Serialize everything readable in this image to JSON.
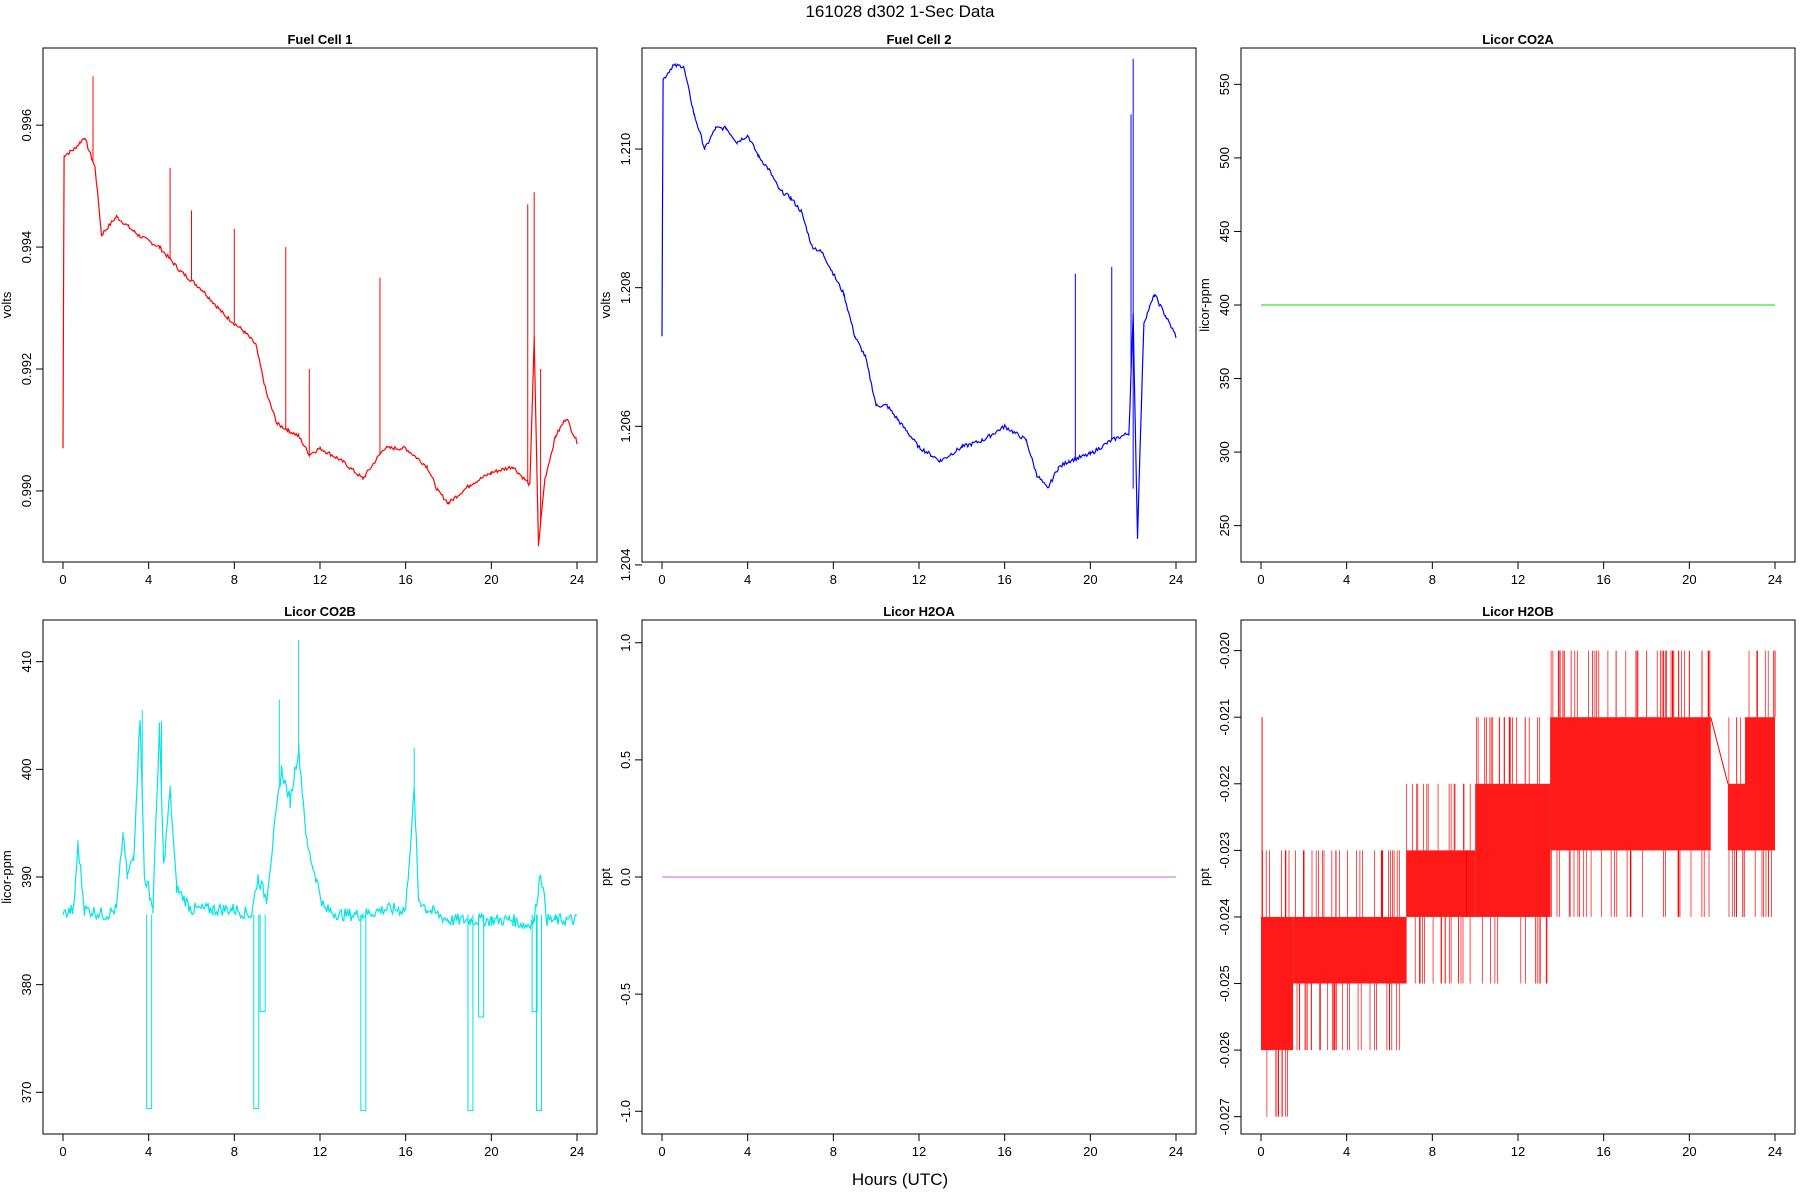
{
  "figure": {
    "title": "161028   d302   1-Sec Data",
    "xlabel": "Hours (UTC)"
  },
  "chart_data": [
    {
      "type": "line",
      "title": "Fuel Cell 1",
      "xlabel": "Hours (UTC)",
      "ylabel": "volts",
      "color": "#ff0000",
      "xlim": [
        0,
        24
      ],
      "ylim": [
        0.9889,
        0.9972
      ],
      "xticks": [
        0,
        4,
        8,
        12,
        16,
        20,
        24
      ],
      "yticks": [
        0.99,
        0.992,
        0.994,
        0.996
      ],
      "ytick_labels": [
        "0.990",
        "0.992",
        "0.994",
        "0.996"
      ],
      "series": [
        {
          "name": "Fuel Cell 1",
          "x": [
            0,
            0.05,
            0.5,
            1.0,
            1.5,
            1.8,
            2.5,
            3.5,
            4.5,
            5.5,
            6.5,
            7.5,
            8.5,
            9.0,
            9.5,
            10.0,
            10.5,
            11.0,
            11.5,
            12.0,
            13.0,
            14.0,
            15.0,
            16.0,
            17.0,
            17.5,
            18.0,
            19.0,
            20.0,
            21.0,
            21.8,
            22.0,
            22.2,
            22.5,
            23.0,
            23.5,
            24.0
          ],
          "y": [
            0.9907,
            0.9955,
            0.9956,
            0.9958,
            0.9953,
            0.9942,
            0.9945,
            0.9942,
            0.994,
            0.9936,
            0.9933,
            0.9929,
            0.9926,
            0.9924,
            0.9916,
            0.9911,
            0.991,
            0.9909,
            0.9906,
            0.9907,
            0.9905,
            0.9902,
            0.9907,
            0.9907,
            0.9904,
            0.99,
            0.9898,
            0.9901,
            0.9903,
            0.9904,
            0.9901,
            0.9925,
            0.9891,
            0.9902,
            0.9909,
            0.9912,
            0.9908
          ],
          "spikes": [
            [
              1.4,
              0.9968
            ],
            [
              5.0,
              0.9953
            ],
            [
              6.0,
              0.9946
            ],
            [
              8.0,
              0.9943
            ],
            [
              10.4,
              0.994
            ],
            [
              11.5,
              0.992
            ],
            [
              14.8,
              0.9935
            ],
            [
              21.7,
              0.9947
            ],
            [
              22.0,
              0.9949
            ],
            [
              22.3,
              0.992
            ]
          ]
        }
      ]
    },
    {
      "type": "line",
      "title": "Fuel Cell 2",
      "xlabel": "Hours (UTC)",
      "ylabel": "volts",
      "color": "#0000ff",
      "xlim": [
        0,
        24
      ],
      "ylim": [
        1.2041,
        1.2114
      ],
      "xticks": [
        0,
        4,
        8,
        12,
        16,
        20,
        24
      ],
      "yticks": [
        1.204,
        1.206,
        1.208,
        1.21
      ],
      "ytick_labels": [
        "1.204",
        "1.206",
        "1.208",
        "1.210"
      ],
      "series": [
        {
          "name": "Fuel Cell 2",
          "x": [
            0,
            0.05,
            0.5,
            1.0,
            1.5,
            2.0,
            2.5,
            3.0,
            3.5,
            4.0,
            4.5,
            5.0,
            5.5,
            6.0,
            6.5,
            7.0,
            7.5,
            8.0,
            8.5,
            9.0,
            9.5,
            10.0,
            10.5,
            11.0,
            11.5,
            12.0,
            13.0,
            14.0,
            15.0,
            16.0,
            17.0,
            17.5,
            18.0,
            18.5,
            19.0,
            20.0,
            21.0,
            21.8,
            22.0,
            22.2,
            22.5,
            23.0,
            23.5,
            24.0
          ],
          "y": [
            1.2073,
            1.211,
            1.2112,
            1.2112,
            1.2105,
            1.21,
            1.2103,
            1.2103,
            1.2101,
            1.2102,
            1.2099,
            1.2097,
            1.2094,
            1.2093,
            1.2091,
            1.2086,
            1.2085,
            1.2082,
            1.2079,
            1.2073,
            1.207,
            1.2063,
            1.2063,
            1.2061,
            1.2059,
            1.2057,
            1.2055,
            1.2057,
            1.2058,
            1.206,
            1.2058,
            1.2053,
            1.2051,
            1.2054,
            1.2055,
            1.2056,
            1.2058,
            1.2059,
            1.2076,
            1.2044,
            1.2075,
            1.2079,
            1.2076,
            1.2073
          ],
          "spikes": [
            [
              19.3,
              1.2082
            ],
            [
              21.0,
              1.2083
            ],
            [
              21.9,
              1.2105
            ],
            [
              22.0,
              1.2113
            ],
            [
              22.0,
              1.2051
            ]
          ]
        }
      ]
    },
    {
      "type": "line",
      "title": "Licor CO2A",
      "xlabel": "Hours (UTC)",
      "ylabel": "licor-ppm",
      "color": "#00e000",
      "xlim": [
        0,
        24
      ],
      "ylim": [
        228,
        572
      ],
      "xticks": [
        0,
        4,
        8,
        12,
        16,
        20,
        24
      ],
      "yticks": [
        250,
        300,
        350,
        400,
        450,
        500,
        550
      ],
      "ytick_labels": [
        "250",
        "300",
        "350",
        "400",
        "450",
        "500",
        "550"
      ],
      "series": [
        {
          "name": "Licor CO2A",
          "x": [
            0,
            24
          ],
          "y": [
            400,
            400
          ]
        }
      ]
    },
    {
      "type": "line",
      "title": "Licor CO2B",
      "xlabel": "Hours (UTC)",
      "ylabel": "licor-ppm",
      "color": "#00e5e5",
      "xlim": [
        0,
        24
      ],
      "ylim": [
        366.5,
        413.5
      ],
      "xticks": [
        0,
        4,
        8,
        12,
        16,
        20,
        24
      ],
      "yticks": [
        370,
        380,
        390,
        400,
        410
      ],
      "ytick_labels": [
        "370",
        "380",
        "390",
        "400",
        "410"
      ],
      "series": [
        {
          "name": "Licor CO2B",
          "x": [
            0,
            0.5,
            0.7,
            1.0,
            2.0,
            2.5,
            2.8,
            3.0,
            3.3,
            3.6,
            3.8,
            4.0,
            4.2,
            4.5,
            4.7,
            5.0,
            5.3,
            6.0,
            7.0,
            8.0,
            8.8,
            9.1,
            9.5,
            9.9,
            10.2,
            10.6,
            11.0,
            11.4,
            11.8,
            12.2,
            13.0,
            14.0,
            15.0,
            16.0,
            16.4,
            16.6,
            17.0,
            18.0,
            19.0,
            20.0,
            21.0,
            21.6,
            22.0,
            22.3,
            22.6,
            23.0,
            24.0
          ],
          "y": [
            386.5,
            387,
            393,
            387,
            386.5,
            387,
            394,
            390,
            392,
            405,
            390,
            389,
            387,
            404,
            391,
            398,
            389,
            387,
            387,
            387,
            386.5,
            390,
            388,
            395,
            400,
            397,
            402,
            393,
            390,
            387,
            386.5,
            386.5,
            387,
            387,
            398,
            388,
            387,
            386,
            386,
            386,
            386,
            385.5,
            386,
            390.5,
            386,
            386,
            386
          ],
          "dips": [
            [
              4.0,
              368.5
            ],
            [
              9.0,
              368.5
            ],
            [
              9.3,
              377.5
            ],
            [
              14.0,
              368.3
            ],
            [
              19.0,
              368.3
            ],
            [
              19.5,
              377
            ],
            [
              22.2,
              368.3
            ],
            [
              22.0,
              377.5
            ]
          ],
          "spikes": [
            [
              3.7,
              405.5
            ],
            [
              4.6,
              404.5
            ],
            [
              10.1,
              406.5
            ],
            [
              11.0,
              412
            ],
            [
              16.4,
              402
            ]
          ]
        }
      ]
    },
    {
      "type": "line",
      "title": "Licor H2OA",
      "xlabel": "Hours (UTC)",
      "ylabel": "ppt",
      "color": "#cc66dd",
      "xlim": [
        0,
        24
      ],
      "ylim": [
        -1.08,
        1.08
      ],
      "xticks": [
        0,
        4,
        8,
        12,
        16,
        20,
        24
      ],
      "yticks": [
        -1.0,
        -0.5,
        0.0,
        0.5,
        1.0
      ],
      "ytick_labels": [
        "-1.0",
        "-0.5",
        "0.0",
        "0.5",
        "1.0"
      ],
      "series": [
        {
          "name": "Licor H2OA",
          "x": [
            0,
            24
          ],
          "y": [
            0.0,
            0.0
          ]
        }
      ]
    },
    {
      "type": "line",
      "title": "Licor H2OB",
      "xlabel": "Hours (UTC)",
      "ylabel": "ppt",
      "color": "#ff0000",
      "xlim": [
        0,
        24
      ],
      "ylim": [
        -0.0272,
        -0.0196
      ],
      "xticks": [
        0,
        4,
        8,
        12,
        16,
        20,
        24
      ],
      "yticks": [
        -0.027,
        -0.026,
        -0.025,
        -0.024,
        -0.023,
        -0.022,
        -0.021,
        -0.02
      ],
      "ytick_labels": [
        "-0.027",
        "-0.026",
        "-0.025",
        "-0.024",
        "-0.023",
        "-0.022",
        "-0.021",
        "-0.020"
      ],
      "series": [
        {
          "name": "Licor H2OB",
          "bands": [
            {
              "x0": 0.0,
              "x1": 1.5,
              "lo": -0.026,
              "hi": -0.024
            },
            {
              "x0": 1.5,
              "x1": 6.8,
              "lo": -0.025,
              "hi": -0.024
            },
            {
              "x0": 6.8,
              "x1": 10.0,
              "lo": -0.024,
              "hi": -0.023
            },
            {
              "x0": 10.0,
              "x1": 13.5,
              "lo": -0.024,
              "hi": -0.022
            },
            {
              "x0": 13.5,
              "x1": 21.0,
              "lo": -0.023,
              "hi": -0.021
            },
            {
              "x0": 21.8,
              "x1": 22.6,
              "lo": -0.023,
              "hi": -0.022
            },
            {
              "x0": 22.6,
              "x1": 24.0,
              "lo": -0.023,
              "hi": -0.021
            }
          ],
          "gap_line": [
            [
              21.0,
              -0.021
            ],
            [
              21.8,
              -0.022
            ]
          ],
          "spikes": [
            [
              0.05,
              -0.021
            ],
            [
              0.7,
              -0.027
            ],
            [
              1.8,
              -0.026
            ],
            [
              2.0,
              -0.023
            ],
            [
              3.5,
              -0.023
            ],
            [
              6.0,
              -0.026
            ],
            [
              8.6,
              -0.025
            ],
            [
              9.6,
              -0.023
            ],
            [
              11.6,
              -0.021
            ],
            [
              11.9,
              -0.024
            ],
            [
              14.1,
              -0.02
            ],
            [
              18.8,
              -0.02
            ],
            [
              19.5,
              -0.02
            ],
            [
              20.0,
              -0.02
            ],
            [
              22.2,
              -0.024
            ],
            [
              22.5,
              -0.024
            ],
            [
              24.0,
              -0.02
            ]
          ]
        }
      ]
    }
  ]
}
